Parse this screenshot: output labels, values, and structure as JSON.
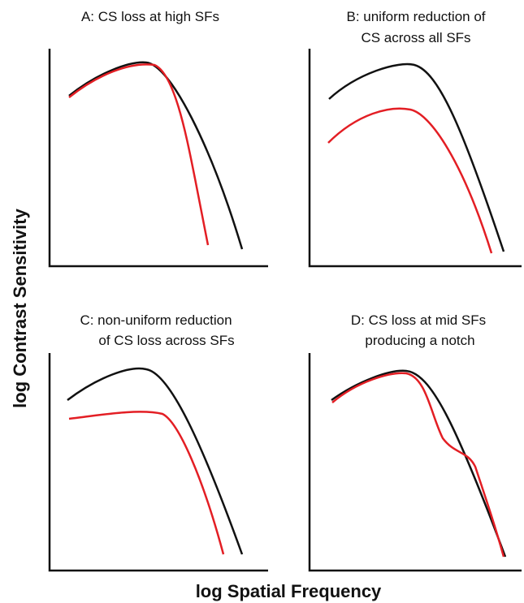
{
  "panels": [
    {
      "title_lines": [
        "A: CS loss at high SFs"
      ]
    },
    {
      "title_lines": [
        "B: uniform reduction of",
        "CS across all SFs"
      ]
    },
    {
      "title_lines": [
        "C: non-uniform reduction",
        "of CS loss across SFs"
      ]
    },
    {
      "title_lines": [
        "D: CS loss at mid SFs",
        "producing a notch"
      ]
    }
  ],
  "y_axis_label": "log Contrast Sensitivity",
  "x_axis_label": "log Spatial Frequency"
}
